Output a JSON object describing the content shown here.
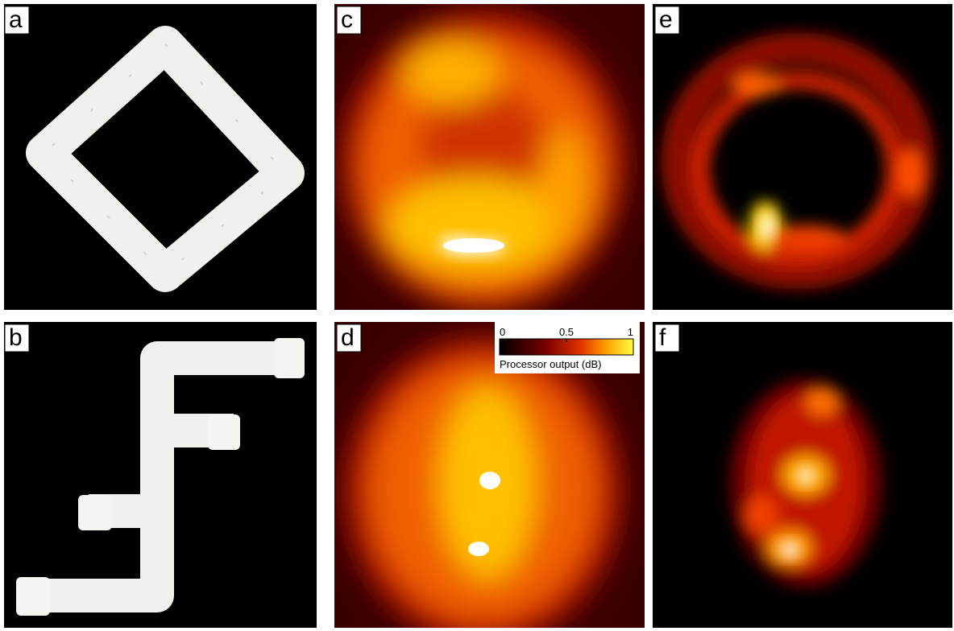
{
  "panels": [
    {
      "label": "a"
    },
    {
      "label": "b"
    },
    {
      "label": "c"
    },
    {
      "label": "d"
    },
    {
      "label": "e"
    },
    {
      "label": "f"
    }
  ],
  "colorbar": {
    "label": "Processor output (dB)",
    "lim": [
      0,
      1
    ],
    "ticks": [
      0,
      0.5,
      1
    ]
  }
}
